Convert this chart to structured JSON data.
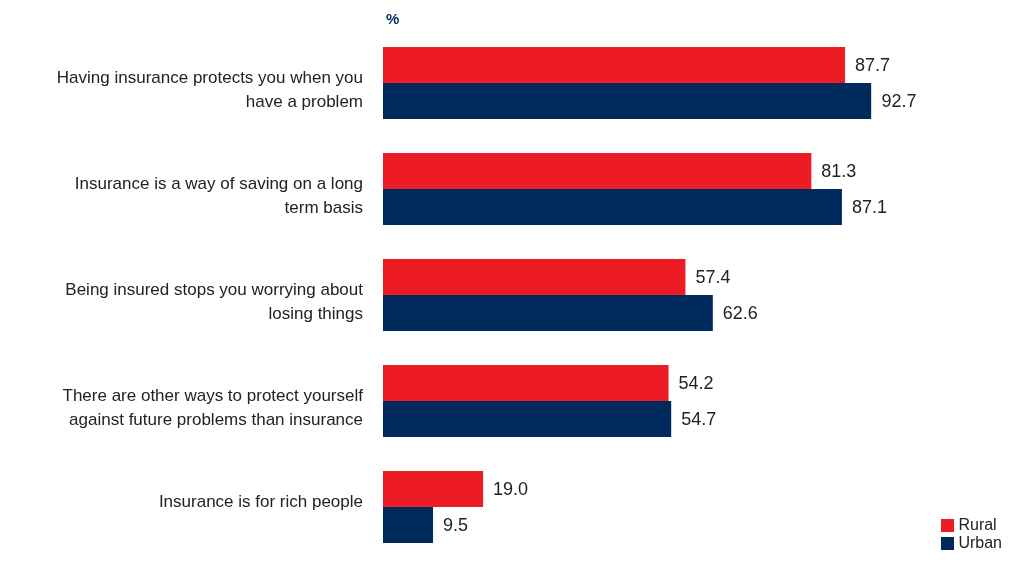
{
  "chart_data": {
    "type": "bar",
    "orientation": "horizontal",
    "xlabel": "%",
    "categories": [
      "Having insurance protects you when you have a problem",
      "Insurance is a way of saving on a long term basis",
      "Being insured stops you worrying about losing things",
      "There are other ways to protect yourself against future problems than insurance",
      "Insurance is for rich people"
    ],
    "series": [
      {
        "name": "Rural",
        "color": "#ed1c24",
        "values": [
          87.7,
          81.3,
          57.4,
          54.2,
          19.0
        ],
        "value_labels": [
          "87.7",
          "81.3",
          "57.4",
          "54.2",
          "19.0"
        ]
      },
      {
        "name": "Urban",
        "color": "#002a5c",
        "values": [
          92.7,
          87.1,
          62.6,
          54.7,
          9.5
        ],
        "value_labels": [
          "92.7",
          "87.1",
          "62.6",
          "54.7",
          "9.5"
        ]
      }
    ],
    "legend": "bottom right",
    "grid": false
  }
}
